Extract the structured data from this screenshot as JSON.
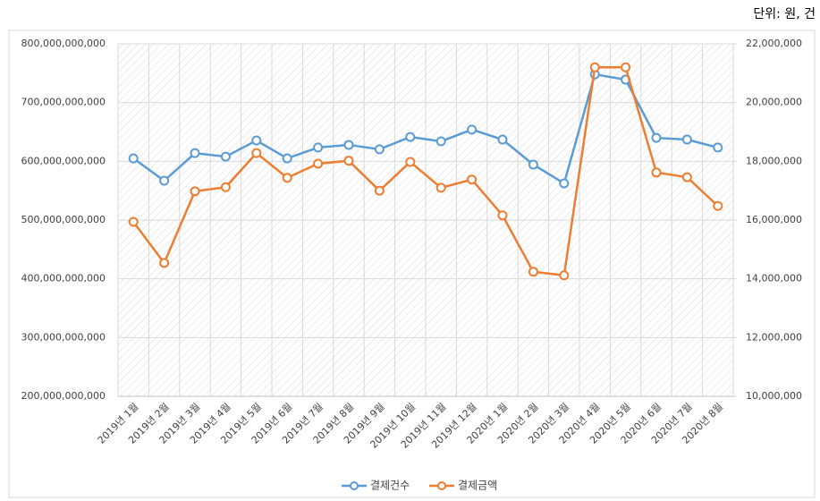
{
  "unit_note": "단위: 원, 건",
  "chart_data": {
    "type": "line",
    "categories": [
      "2019년 1월",
      "2019년 2월",
      "2019년 3월",
      "2019년 4월",
      "2019년 5월",
      "2019년 6월",
      "2019년 7월",
      "2019년 8월",
      "2019년 9월",
      "2019년 10월",
      "2019년 11월",
      "2019년 12월",
      "2020년 1월",
      "2020년 2월",
      "2020년 3월",
      "2020년 4월",
      "2020년 5월",
      "2020년 6월",
      "2020년 7월",
      "2020년 8월"
    ],
    "series": [
      {
        "name": "결제건수",
        "color": "#5b9bd5",
        "axis": "y2",
        "values": [
          18100000,
          17340000,
          18280000,
          18160000,
          18710000,
          18100000,
          18470000,
          18560000,
          18410000,
          18830000,
          18680000,
          19080000,
          18740000,
          17890000,
          17250000,
          20960000,
          20780000,
          18800000,
          18740000,
          18470000
        ]
      },
      {
        "name": "결제금액",
        "color": "#ed7d31",
        "axis": "y",
        "values": [
          497000000000,
          427000000000,
          549000000000,
          556000000000,
          614000000000,
          572000000000,
          596000000000,
          601000000000,
          550000000000,
          599000000000,
          555000000000,
          569000000000,
          508000000000,
          412000000000,
          406000000000,
          760000000000,
          760000000000,
          581000000000,
          573000000000,
          524000000000
        ]
      }
    ],
    "ylim": [
      200000000000,
      800000000000
    ],
    "yticks": [
      {
        "value": 200000000000,
        "label": "200,000,000,000"
      },
      {
        "value": 300000000000,
        "label": "300,000,000,000"
      },
      {
        "value": 400000000000,
        "label": "400,000,000,000"
      },
      {
        "value": 500000000000,
        "label": "500,000,000,000"
      },
      {
        "value": 600000000000,
        "label": "600,000,000,000"
      },
      {
        "value": 700000000000,
        "label": "700,000,000,000"
      },
      {
        "value": 800000000000,
        "label": "800,000,000,000"
      }
    ],
    "y2lim": [
      10000000,
      22000000
    ],
    "y2ticks": [
      {
        "value": 10000000,
        "label": "10,000,000"
      },
      {
        "value": 12000000,
        "label": "12,000,000"
      },
      {
        "value": 14000000,
        "label": "14,000,000"
      },
      {
        "value": 16000000,
        "label": "16,000,000"
      },
      {
        "value": 18000000,
        "label": "18,000,000"
      },
      {
        "value": 20000000,
        "label": "20,000,000"
      },
      {
        "value": 22000000,
        "label": "22,000,000"
      }
    ],
    "grid": true,
    "legend": "bottom"
  }
}
